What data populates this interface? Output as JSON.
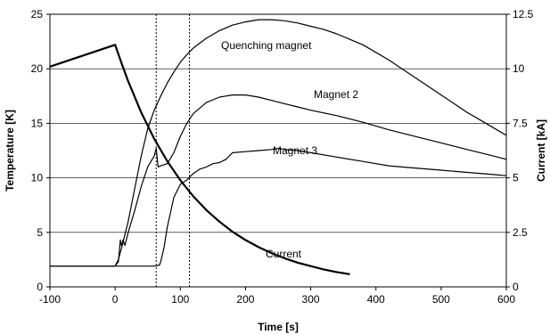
{
  "chart_data": {
    "type": "line",
    "xlabel": "Time [s]",
    "ylabel": "Temperature [K]",
    "y2label": "Current [kA]",
    "xlim": [
      -100,
      600
    ],
    "ylim": [
      0,
      25
    ],
    "y2lim": [
      0,
      12.5
    ],
    "xticks": [
      "-100",
      "0",
      "100",
      "200",
      "300",
      "400",
      "500",
      "600"
    ],
    "yticks": [
      "0",
      "5",
      "10",
      "15",
      "20",
      "25"
    ],
    "y2ticks": [
      "0",
      "2.5",
      "5",
      "7.5",
      "10",
      "12.5"
    ],
    "grid": "horizontal",
    "vertical_markers_x": [
      63,
      114
    ],
    "series": [
      {
        "name": "Quenching magnet",
        "axis": "left",
        "x": [
          0,
          5,
          10,
          20,
          30,
          40,
          50,
          60,
          70,
          80,
          90,
          100,
          110,
          120,
          140,
          160,
          180,
          200,
          220,
          240,
          260,
          280,
          300,
          320,
          340,
          360,
          380,
          400,
          420,
          440,
          460,
          480,
          500,
          520,
          540,
          560,
          580,
          600
        ],
        "values": [
          1.9,
          2.5,
          3.6,
          6.0,
          9.0,
          12.0,
          14.5,
          16.2,
          17.5,
          18.7,
          19.7,
          20.6,
          21.3,
          21.9,
          22.8,
          23.5,
          24.0,
          24.3,
          24.5,
          24.5,
          24.4,
          24.2,
          23.9,
          23.6,
          23.2,
          22.7,
          22.2,
          21.5,
          20.8,
          20.0,
          19.2,
          18.4,
          17.6,
          16.8,
          16.0,
          15.3,
          14.6,
          13.9
        ]
      },
      {
        "name": "Magnet 2",
        "axis": "left",
        "x": [
          -100,
          0,
          5,
          8,
          10,
          12,
          15,
          20,
          30,
          40,
          50,
          60,
          63,
          66,
          70,
          80,
          90,
          100,
          110,
          120,
          140,
          160,
          180,
          200,
          220,
          240,
          260,
          280,
          300,
          340,
          380,
          420,
          460,
          500,
          540,
          580,
          600
        ],
        "values": [
          1.9,
          1.9,
          2.3,
          4.3,
          3.7,
          4.3,
          3.8,
          5.0,
          7.0,
          9.2,
          11.0,
          12.0,
          12.7,
          11.0,
          11.1,
          11.3,
          12.3,
          13.8,
          15.0,
          15.9,
          16.9,
          17.4,
          17.6,
          17.6,
          17.4,
          17.1,
          16.8,
          16.5,
          16.2,
          15.7,
          15.1,
          14.4,
          13.8,
          13.2,
          12.6,
          12.0,
          11.7
        ]
      },
      {
        "name": "Magnet 3",
        "axis": "left",
        "x": [
          -100,
          0,
          60,
          68,
          70,
          75,
          80,
          90,
          100,
          110,
          120,
          130,
          140,
          150,
          160,
          170,
          180,
          200,
          220,
          240,
          250,
          260,
          280,
          300,
          340,
          380,
          420,
          460,
          500,
          540,
          580,
          600
        ],
        "values": [
          1.9,
          1.9,
          1.9,
          2.0,
          2.3,
          3.6,
          5.5,
          8.2,
          9.4,
          9.8,
          10.4,
          10.8,
          11.0,
          11.3,
          11.4,
          11.7,
          12.3,
          12.4,
          12.5,
          12.6,
          12.7,
          12.6,
          12.5,
          12.3,
          11.9,
          11.5,
          11.1,
          10.9,
          10.7,
          10.5,
          10.3,
          10.2
        ]
      },
      {
        "name": "Current",
        "axis": "right",
        "x": [
          -100,
          0,
          5,
          10,
          20,
          40,
          60,
          80,
          100,
          120,
          140,
          160,
          180,
          200,
          220,
          240,
          260,
          280,
          300,
          320,
          340,
          360
        ],
        "values": [
          10.1,
          11.1,
          10.67,
          10.24,
          9.43,
          8.0,
          6.79,
          5.76,
          4.89,
          4.15,
          3.52,
          2.99,
          2.53,
          2.15,
          1.82,
          1.55,
          1.31,
          1.11,
          0.95,
          0.8,
          0.68,
          0.58
        ]
      }
    ]
  }
}
